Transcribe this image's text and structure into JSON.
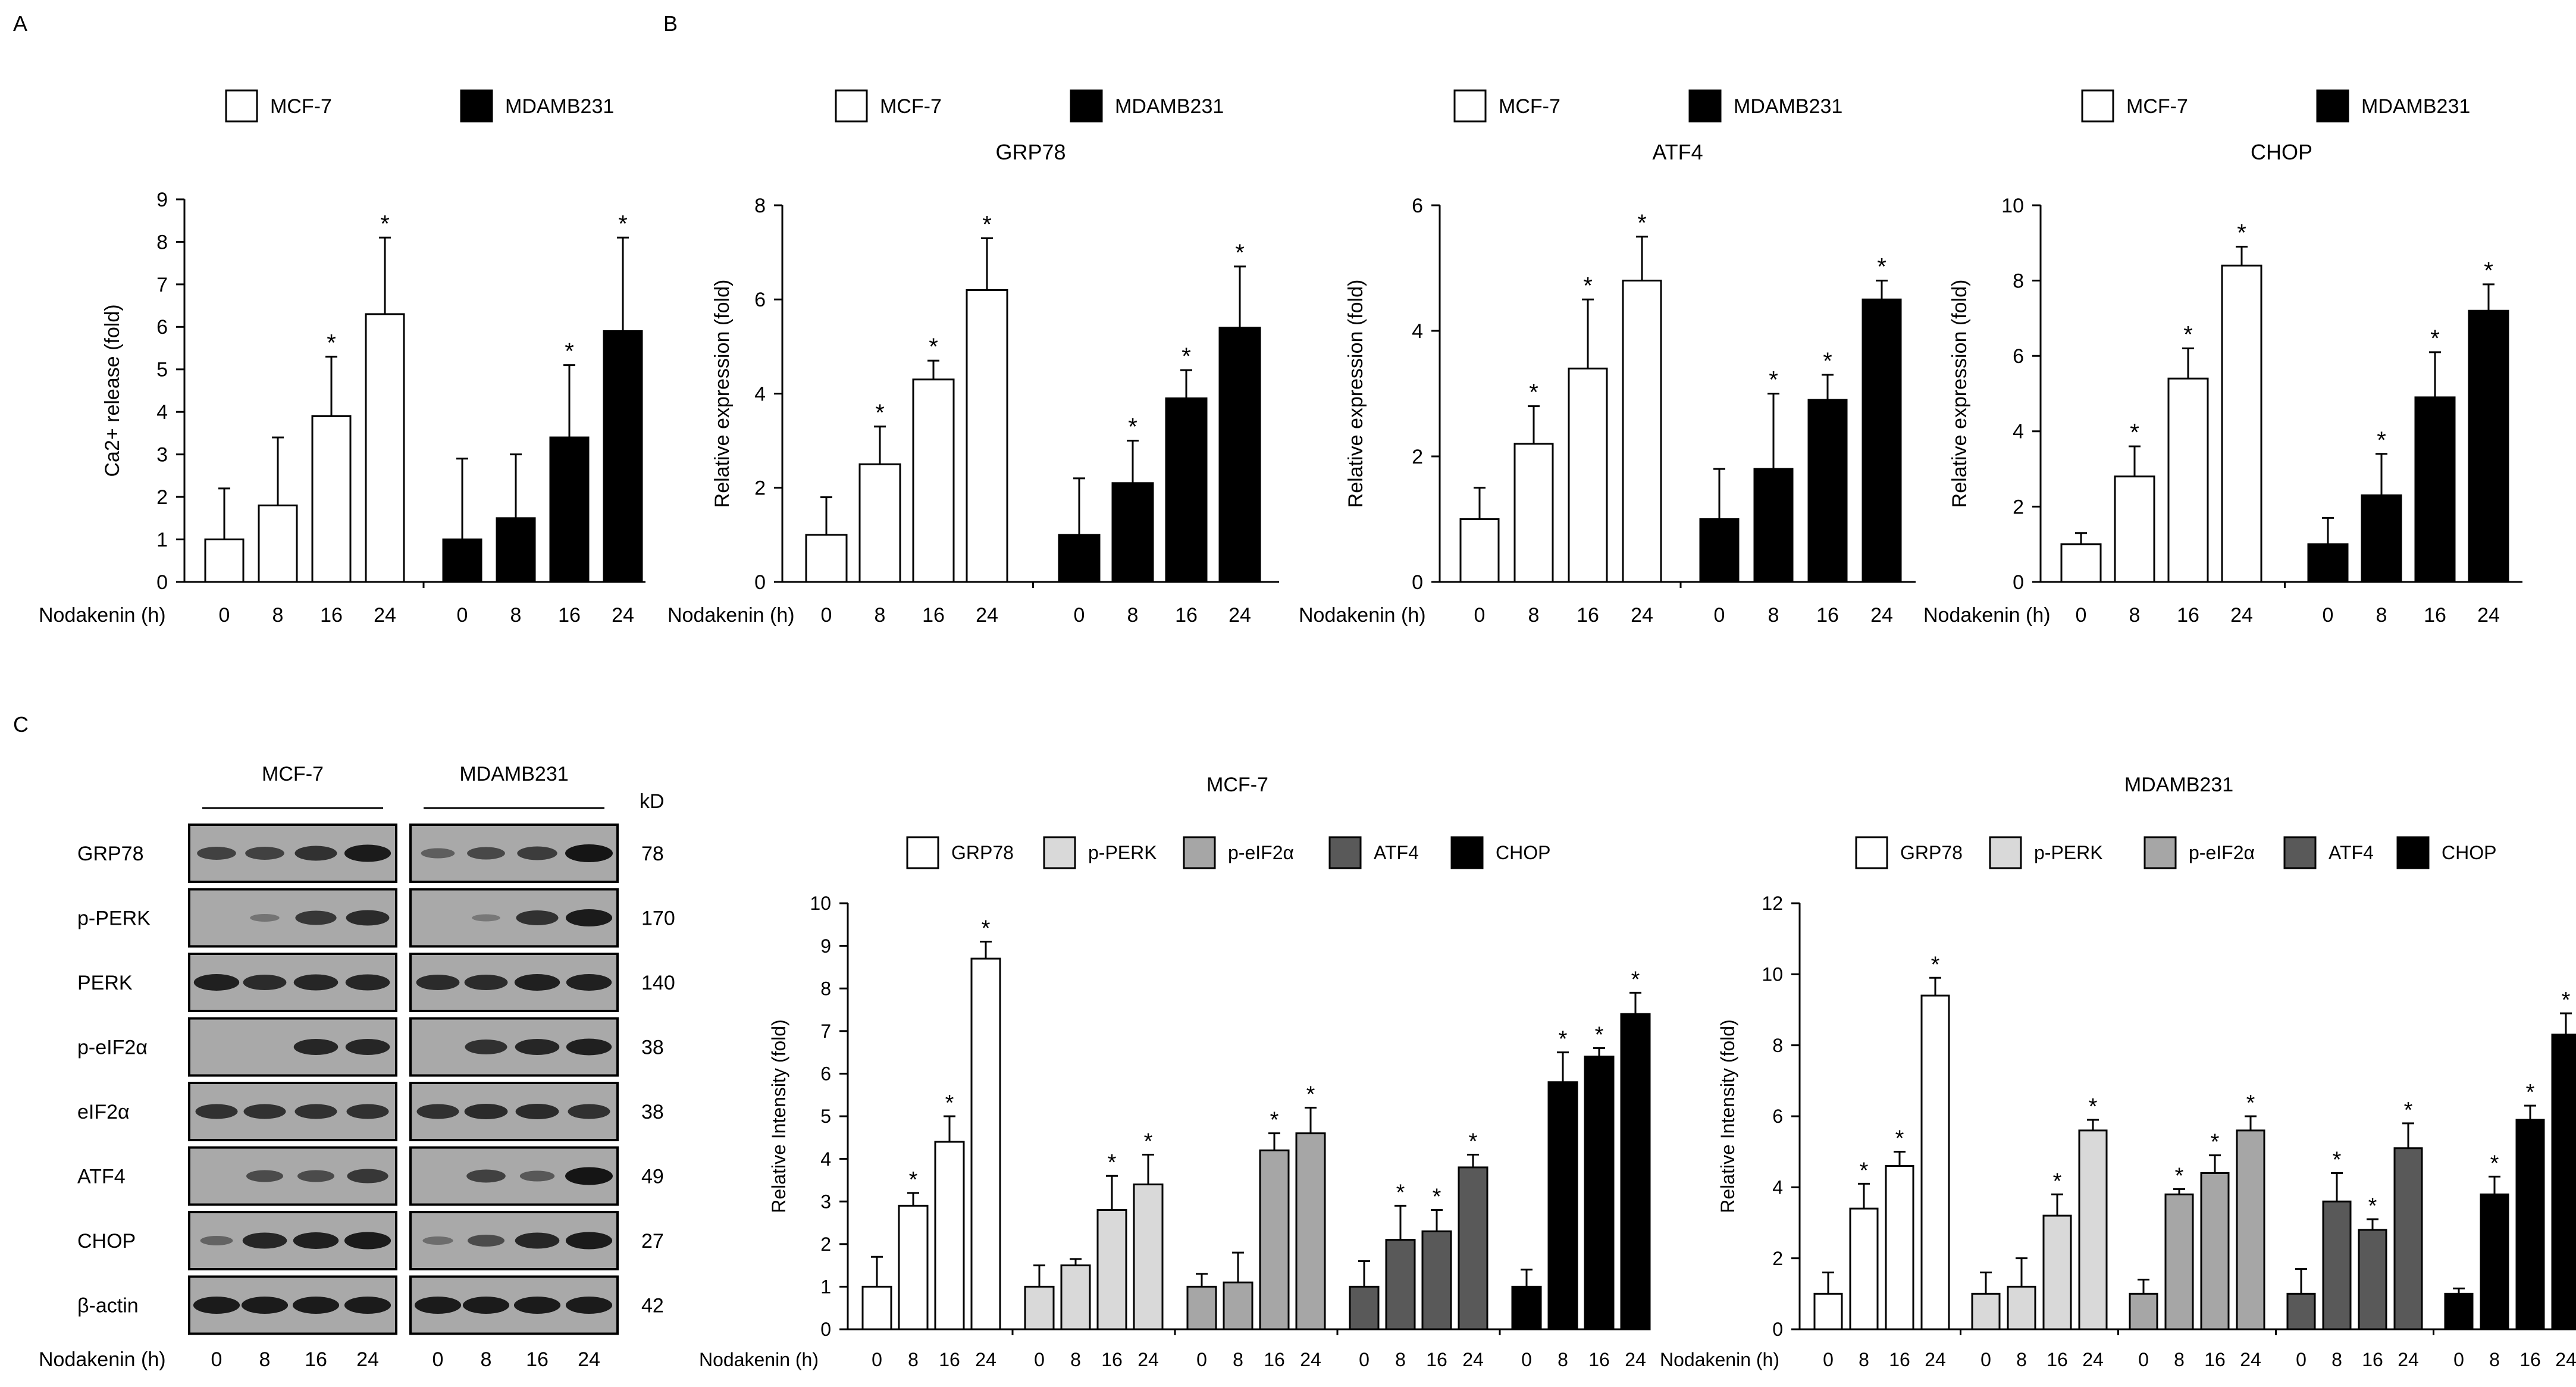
{
  "panels": {
    "a": "A",
    "b": "B",
    "c": "C"
  },
  "x_axis_label": "Nodakenin (h)",
  "series_colors": {
    "MCF-7": "#ffffff",
    "MDAMB231": "#000000",
    "GRP78": "#ffffff",
    "p-PERK": "#d9d9d9",
    "p-eIF2α": "#a6a6a6",
    "ATF4": "#595959",
    "CHOP": "#000000"
  },
  "significance_marker": "*",
  "chart_data": [
    {
      "id": "panelA",
      "type": "bar",
      "title": "",
      "ylabel": "Ca2+ release (fold)",
      "xlabel": "Nodakenin (h)",
      "ylim": [
        0,
        9
      ],
      "yticks": [
        0,
        1,
        2,
        3,
        4,
        5,
        6,
        7,
        8,
        9
      ],
      "legend": [
        "MCF-7",
        "MDAMB231"
      ],
      "legend_position": "top",
      "grid": false,
      "groups": [
        {
          "name": "MCF-7",
          "color": "#ffffff",
          "categories": [
            "0",
            "8",
            "16",
            "24"
          ],
          "values": [
            1.0,
            1.8,
            3.9,
            6.3
          ],
          "errors": [
            1.2,
            1.6,
            1.4,
            1.8
          ],
          "sig": [
            false,
            false,
            true,
            true
          ]
        },
        {
          "name": "MDAMB231",
          "color": "#000000",
          "categories": [
            "0",
            "8",
            "16",
            "24"
          ],
          "values": [
            1.0,
            1.5,
            3.4,
            5.9
          ],
          "errors": [
            1.9,
            1.5,
            1.7,
            2.2
          ],
          "sig": [
            false,
            false,
            true,
            true
          ]
        }
      ]
    },
    {
      "id": "panelB1",
      "type": "bar",
      "title": "GRP78",
      "ylabel": "Relative expression (fold)",
      "xlabel": "Nodakenin (h)",
      "ylim": [
        0,
        8
      ],
      "yticks": [
        0,
        2,
        4,
        6,
        8
      ],
      "legend": [
        "MCF-7",
        "MDAMB231"
      ],
      "legend_position": "top",
      "grid": false,
      "groups": [
        {
          "name": "MCF-7",
          "color": "#ffffff",
          "categories": [
            "0",
            "8",
            "16",
            "24"
          ],
          "values": [
            1.0,
            2.5,
            4.3,
            6.2
          ],
          "errors": [
            0.8,
            0.8,
            0.4,
            1.1
          ],
          "sig": [
            false,
            true,
            true,
            true
          ]
        },
        {
          "name": "MDAMB231",
          "color": "#000000",
          "categories": [
            "0",
            "8",
            "16",
            "24"
          ],
          "values": [
            1.0,
            2.1,
            3.9,
            5.4
          ],
          "errors": [
            1.2,
            0.9,
            0.6,
            1.3
          ],
          "sig": [
            false,
            true,
            true,
            true
          ]
        }
      ]
    },
    {
      "id": "panelB2",
      "type": "bar",
      "title": "ATF4",
      "ylabel": "Relative expression (fold)",
      "xlabel": "Nodakenin (h)",
      "ylim": [
        0,
        6
      ],
      "yticks": [
        0,
        2,
        4,
        6
      ],
      "legend": [
        "MCF-7",
        "MDAMB231"
      ],
      "legend_position": "top",
      "grid": false,
      "groups": [
        {
          "name": "MCF-7",
          "color": "#ffffff",
          "categories": [
            "0",
            "8",
            "16",
            "24"
          ],
          "values": [
            1.0,
            2.2,
            3.4,
            4.8
          ],
          "errors": [
            0.5,
            0.6,
            1.1,
            0.7
          ],
          "sig": [
            false,
            true,
            true,
            true
          ]
        },
        {
          "name": "MDAMB231",
          "color": "#000000",
          "categories": [
            "0",
            "8",
            "16",
            "24"
          ],
          "values": [
            1.0,
            1.8,
            2.9,
            4.5
          ],
          "errors": [
            0.8,
            1.2,
            0.4,
            0.3
          ],
          "sig": [
            false,
            true,
            true,
            true
          ]
        }
      ]
    },
    {
      "id": "panelB3",
      "type": "bar",
      "title": "CHOP",
      "ylabel": "Relative expression (fold)",
      "xlabel": "Nodakenin (h)",
      "ylim": [
        0,
        10
      ],
      "yticks": [
        0,
        2,
        4,
        6,
        8,
        10
      ],
      "legend": [
        "MCF-7",
        "MDAMB231"
      ],
      "legend_position": "top",
      "grid": false,
      "groups": [
        {
          "name": "MCF-7",
          "color": "#ffffff",
          "categories": [
            "0",
            "8",
            "16",
            "24"
          ],
          "values": [
            1.0,
            2.8,
            5.4,
            8.4
          ],
          "errors": [
            0.3,
            0.8,
            0.8,
            0.5
          ],
          "sig": [
            false,
            true,
            true,
            true
          ]
        },
        {
          "name": "MDAMB231",
          "color": "#000000",
          "categories": [
            "0",
            "8",
            "16",
            "24"
          ],
          "values": [
            1.0,
            2.3,
            4.9,
            7.2
          ],
          "errors": [
            0.7,
            1.1,
            1.2,
            0.7
          ],
          "sig": [
            false,
            true,
            true,
            true
          ]
        }
      ]
    },
    {
      "id": "panelC1",
      "type": "bar",
      "title": "MCF-7",
      "ylabel": "Relative Intensity (fold)",
      "xlabel": "Nodakenin (h)",
      "ylim": [
        0,
        10
      ],
      "yticks": [
        0,
        1,
        2,
        3,
        4,
        5,
        6,
        7,
        8,
        9,
        10
      ],
      "legend": [
        "GRP78",
        "p-PERK",
        "p-eIF2α",
        "ATF4",
        "CHOP"
      ],
      "legend_position": "top",
      "grid": false,
      "groups": [
        {
          "name": "GRP78",
          "color": "#ffffff",
          "categories": [
            "0",
            "8",
            "16",
            "24"
          ],
          "values": [
            1.0,
            2.9,
            4.4,
            8.7
          ],
          "errors": [
            0.7,
            0.3,
            0.6,
            0.4
          ],
          "sig": [
            false,
            true,
            true,
            true
          ]
        },
        {
          "name": "p-PERK",
          "color": "#d9d9d9",
          "categories": [
            "0",
            "8",
            "16",
            "24"
          ],
          "values": [
            1.0,
            1.5,
            2.8,
            3.4
          ],
          "errors": [
            0.5,
            0.15,
            0.8,
            0.7
          ],
          "sig": [
            false,
            false,
            true,
            true
          ]
        },
        {
          "name": "p-eIF2α",
          "color": "#a6a6a6",
          "categories": [
            "0",
            "8",
            "16",
            "24"
          ],
          "values": [
            1.0,
            1.1,
            4.2,
            4.6
          ],
          "errors": [
            0.3,
            0.7,
            0.4,
            0.6
          ],
          "sig": [
            false,
            false,
            true,
            true
          ]
        },
        {
          "name": "ATF4",
          "color": "#595959",
          "categories": [
            "0",
            "8",
            "16",
            "24"
          ],
          "values": [
            1.0,
            2.1,
            2.3,
            3.8
          ],
          "errors": [
            0.6,
            0.8,
            0.5,
            0.3
          ],
          "sig": [
            false,
            true,
            true,
            true
          ]
        },
        {
          "name": "CHOP",
          "color": "#000000",
          "categories": [
            "0",
            "8",
            "16",
            "24"
          ],
          "values": [
            1.0,
            5.8,
            6.4,
            7.4
          ],
          "errors": [
            0.4,
            0.7,
            0.2,
            0.5
          ],
          "sig": [
            false,
            true,
            true,
            true
          ]
        }
      ]
    },
    {
      "id": "panelC2",
      "type": "bar",
      "title": "MDAMB231",
      "ylabel": "Relative Intensity (fold)",
      "xlabel": "Nodakenin (h)",
      "ylim": [
        0,
        12
      ],
      "yticks": [
        0,
        2,
        4,
        6,
        8,
        10,
        12
      ],
      "legend": [
        "GRP78",
        "p-PERK",
        "p-eIF2α",
        "ATF4",
        "CHOP"
      ],
      "legend_position": "top",
      "grid": false,
      "groups": [
        {
          "name": "GRP78",
          "color": "#ffffff",
          "categories": [
            "0",
            "8",
            "16",
            "24"
          ],
          "values": [
            1.0,
            3.4,
            4.6,
            9.4
          ],
          "errors": [
            0.6,
            0.7,
            0.4,
            0.5
          ],
          "sig": [
            false,
            true,
            true,
            true
          ]
        },
        {
          "name": "p-PERK",
          "color": "#d9d9d9",
          "categories": [
            "0",
            "8",
            "16",
            "24"
          ],
          "values": [
            1.0,
            1.2,
            3.2,
            5.6
          ],
          "errors": [
            0.6,
            0.8,
            0.6,
            0.3
          ],
          "sig": [
            false,
            false,
            true,
            true
          ]
        },
        {
          "name": "p-eIF2α",
          "color": "#a6a6a6",
          "categories": [
            "0",
            "8",
            "16",
            "24"
          ],
          "values": [
            1.0,
            3.8,
            4.4,
            5.6
          ],
          "errors": [
            0.4,
            0.15,
            0.5,
            0.4
          ],
          "sig": [
            false,
            true,
            true,
            true
          ]
        },
        {
          "name": "ATF4",
          "color": "#595959",
          "categories": [
            "0",
            "8",
            "16",
            "24"
          ],
          "values": [
            1.0,
            3.6,
            2.8,
            5.1
          ],
          "errors": [
            0.7,
            0.8,
            0.3,
            0.7
          ],
          "sig": [
            false,
            true,
            true,
            true
          ]
        },
        {
          "name": "CHOP",
          "color": "#000000",
          "categories": [
            "0",
            "8",
            "16",
            "24"
          ],
          "values": [
            1.0,
            3.8,
            5.9,
            8.3
          ],
          "errors": [
            0.15,
            0.5,
            0.4,
            0.6
          ],
          "sig": [
            false,
            true,
            true,
            true
          ]
        }
      ]
    }
  ],
  "western_blot": {
    "cell_lines": [
      "MCF-7",
      "MDAMB231"
    ],
    "kd_header": "kD",
    "lanes": [
      "0",
      "8",
      "16",
      "24"
    ],
    "rows": [
      {
        "protein": "GRP78",
        "kd": "78",
        "intensity": [
          [
            0.6,
            0.6,
            0.75,
            0.95
          ],
          [
            0.35,
            0.55,
            0.65,
            1.0
          ]
        ]
      },
      {
        "protein": "p-PERK",
        "kd": "170",
        "intensity": [
          [
            0.0,
            0.15,
            0.7,
            0.8
          ],
          [
            0.0,
            0.1,
            0.75,
            0.95
          ]
        ]
      },
      {
        "protein": "PERK",
        "kd": "140",
        "intensity": [
          [
            0.9,
            0.8,
            0.85,
            0.85
          ],
          [
            0.8,
            0.8,
            0.9,
            0.9
          ]
        ]
      },
      {
        "protein": "p-eIF2α",
        "kd": "38",
        "intensity": [
          [
            0.0,
            0.0,
            0.85,
            0.85
          ],
          [
            0.0,
            0.75,
            0.85,
            0.9
          ]
        ]
      },
      {
        "protein": "eIF2α",
        "kd": "38",
        "intensity": [
          [
            0.75,
            0.75,
            0.75,
            0.75
          ],
          [
            0.75,
            0.8,
            0.8,
            0.75
          ]
        ]
      },
      {
        "protein": "ATF4",
        "kd": "49",
        "intensity": [
          [
            0.0,
            0.5,
            0.5,
            0.7
          ],
          [
            0.0,
            0.6,
            0.4,
            1.0
          ]
        ]
      },
      {
        "protein": "CHOP",
        "kd": "27",
        "intensity": [
          [
            0.3,
            0.85,
            0.9,
            0.95
          ],
          [
            0.2,
            0.5,
            0.85,
            0.95
          ]
        ]
      },
      {
        "protein": "β-actin",
        "kd": "42",
        "intensity": [
          [
            0.95,
            0.95,
            0.95,
            0.95
          ],
          [
            0.95,
            0.95,
            0.95,
            0.95
          ]
        ]
      }
    ]
  }
}
